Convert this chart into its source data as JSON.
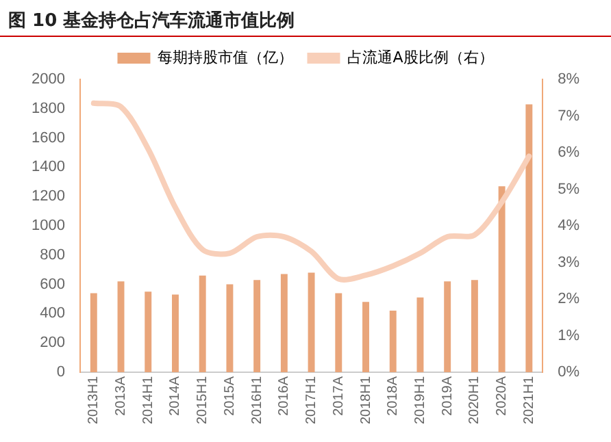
{
  "chart_data": {
    "type": "bar",
    "title": "图 10 基金持仓占汽车流通市值比例",
    "categories": [
      "2013H1",
      "2013A",
      "2014H1",
      "2014A",
      "2015H1",
      "2015A",
      "2016H1",
      "2016A",
      "2017H1",
      "2017A",
      "2018H1",
      "2018A",
      "2019H1",
      "2019A",
      "2020H1",
      "2020A",
      "2021H1"
    ],
    "series": [
      {
        "name": "每期持股市值（亿）",
        "color": "#e9a57a",
        "values": [
          540,
          620,
          550,
          530,
          660,
          600,
          630,
          670,
          680,
          540,
          480,
          420,
          510,
          620,
          630,
          1270,
          1830
        ]
      },
      {
        "name": "占流通A股比例（右）",
        "type": "line",
        "axis": "y2",
        "color": "#f8cfb9",
        "values": [
          7.35,
          7.25,
          6.1,
          4.5,
          3.35,
          3.25,
          3.7,
          3.7,
          3.3,
          2.55,
          2.65,
          2.9,
          3.25,
          3.7,
          3.75,
          4.65,
          5.9
        ]
      }
    ],
    "ylim": [
      0,
      2000
    ],
    "yticks": [
      0,
      200,
      400,
      600,
      800,
      1000,
      1200,
      1400,
      1600,
      1800,
      2000
    ],
    "y2lim": [
      0,
      8
    ],
    "y2ticks": [
      {
        "value": 0,
        "label": "0%"
      },
      {
        "value": 1,
        "label": "1%"
      },
      {
        "value": 2,
        "label": "2%"
      },
      {
        "value": 3,
        "label": "3%"
      },
      {
        "value": 4,
        "label": "4%"
      },
      {
        "value": 5,
        "label": "5%"
      },
      {
        "value": 6,
        "label": "6%"
      },
      {
        "value": 7,
        "label": "7%"
      },
      {
        "value": 8,
        "label": "8%"
      }
    ],
    "grid": false,
    "legend": "top"
  }
}
